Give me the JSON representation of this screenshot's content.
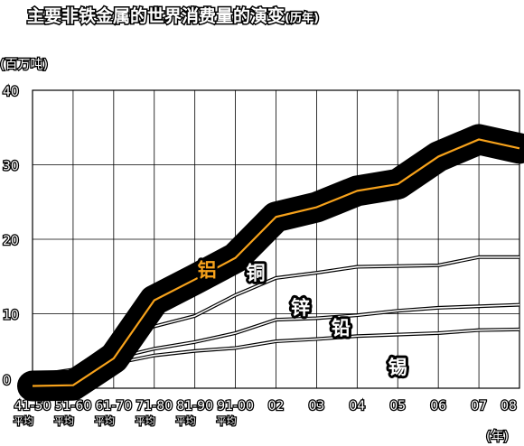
{
  "chart_data": {
    "type": "line",
    "title": "主要非铁金属的世界消费量的演变",
    "title_suffix": "(历年)",
    "ylabel": "(百万吨)",
    "xlabel": "(年)",
    "ylim": [
      0,
      40
    ],
    "y_ticks": [
      "0",
      "10",
      "20",
      "30",
      "40"
    ],
    "grid": true,
    "x_ticks": [
      {
        "line1": "41-50",
        "line2": "平均"
      },
      {
        "line1": "51-60",
        "line2": "平均"
      },
      {
        "line1": "61-70",
        "line2": "平均"
      },
      {
        "line1": "71-80",
        "line2": "平均"
      },
      {
        "line1": "81-90",
        "line2": "平均"
      },
      {
        "line1": "91-00",
        "line2": "平均"
      },
      {
        "line1": "02",
        "line2": ""
      },
      {
        "line1": "03",
        "line2": ""
      },
      {
        "line1": "04",
        "line2": ""
      },
      {
        "line1": "05",
        "line2": ""
      },
      {
        "line1": "06",
        "line2": ""
      },
      {
        "line1": "07",
        "line2": ""
      },
      {
        "line1": "08",
        "line2": ""
      }
    ],
    "series": [
      {
        "name": "铝",
        "color": "#f7a21b",
        "emphasized": true,
        "values": [
          0.3,
          0.4,
          4.0,
          11.8,
          14.6,
          17.5,
          23.0,
          24.3,
          26.5,
          27.4,
          31.1,
          33.4,
          32.2
        ]
      },
      {
        "name": "铜",
        "color": "#ffffff",
        "values": [
          1.7,
          2.5,
          6.3,
          8.3,
          9.7,
          12.5,
          14.8,
          15.5,
          16.3,
          16.4,
          16.5,
          17.6,
          17.6
        ]
      },
      {
        "name": "锌",
        "color": "#ffffff",
        "values": [
          1.2,
          1.8,
          4.0,
          5.3,
          6.2,
          7.4,
          9.2,
          9.4,
          9.8,
          10.4,
          10.8,
          11.0,
          11.2
        ]
      },
      {
        "name": "铅",
        "color": "#ffffff",
        "values": [
          1.0,
          1.5,
          3.3,
          4.4,
          5.0,
          5.4,
          6.3,
          6.6,
          7.0,
          7.2,
          7.4,
          7.8,
          7.9
        ]
      }
    ],
    "extra_labels": [
      {
        "name": "锡"
      }
    ]
  }
}
